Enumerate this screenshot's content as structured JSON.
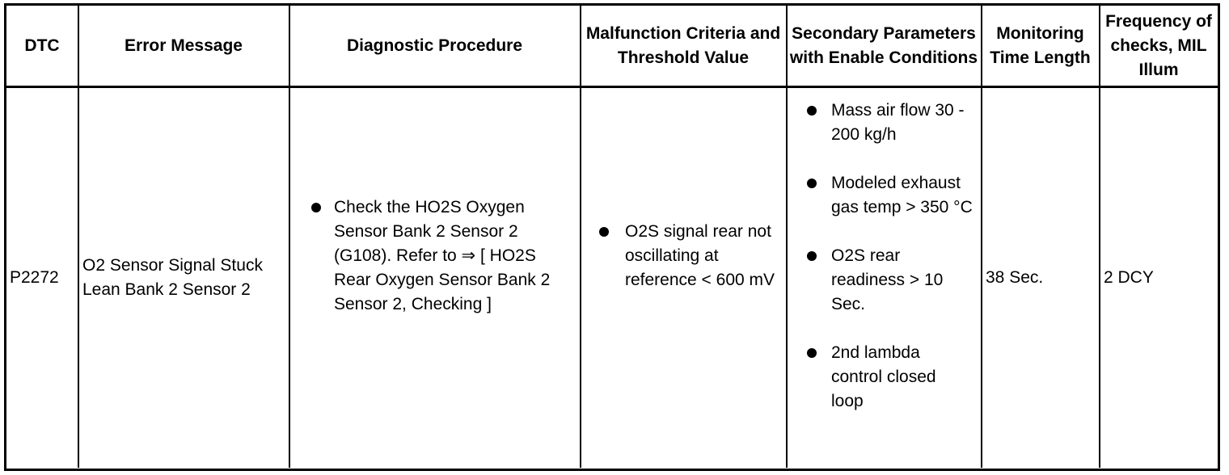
{
  "headers": [
    "DTC",
    "Error Message",
    "Diagnostic Procedure",
    "Malfunction Criteria and Threshold Value",
    "Secondary Parameters with Enable Conditions",
    "Monitoring Time Length",
    "Frequency of checks, MIL Illum"
  ],
  "row": {
    "dtc": "P2272",
    "error_message": "O2 Sensor Signal Stuck Lean Bank 2 Sensor 2",
    "procedure": [
      "Check the HO2S Oxygen Sensor Bank 2 Sensor 2 (G108). Refer to ⇒ [ HO2S Rear Oxygen Sensor Bank 2 Sensor 2, Checking ]"
    ],
    "malfunction": [
      "O2S signal rear not oscillating at reference < 600 mV"
    ],
    "secondary": [
      "Mass air flow 30 - 200 kg/h",
      "Modeled exhaust gas temp > 350 °C",
      "O2S rear readiness > 10 Sec.",
      "2nd lambda control closed loop"
    ],
    "time": "38 Sec.",
    "frequency": "2 DCY"
  }
}
